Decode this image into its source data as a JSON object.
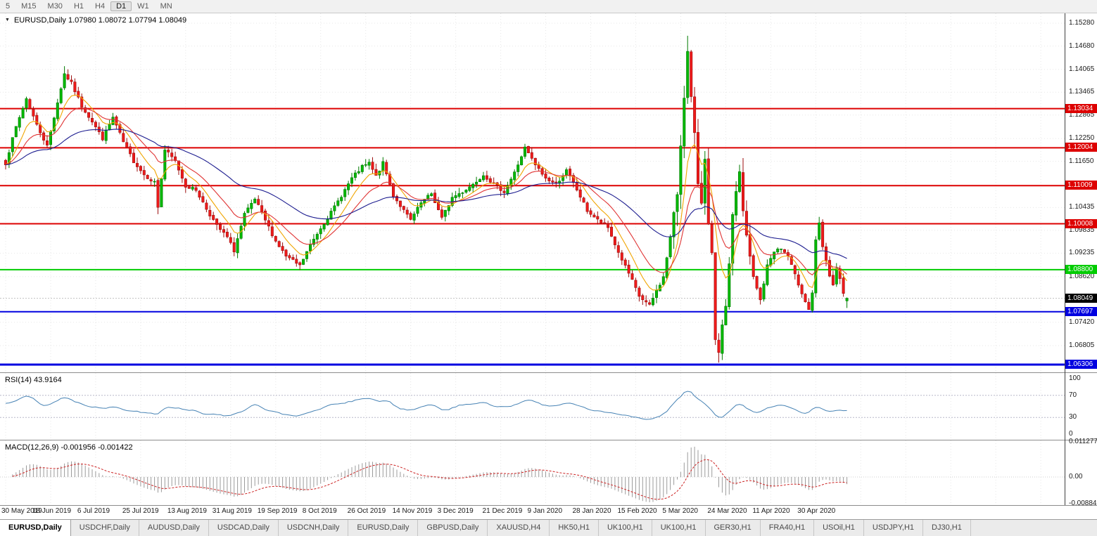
{
  "toolbar": {
    "timeframes": [
      {
        "label": "5",
        "active": false
      },
      {
        "label": "M15",
        "active": false
      },
      {
        "label": "M30",
        "active": false
      },
      {
        "label": "H1",
        "active": false
      },
      {
        "label": "H4",
        "active": false
      },
      {
        "label": "D1",
        "active": true
      },
      {
        "label": "W1",
        "active": false
      },
      {
        "label": "MN",
        "active": false
      }
    ]
  },
  "icons": {
    "chart_menu": "▼"
  },
  "chart": {
    "title_text": "EURUSD,Daily 1.07980 1.08072 1.07794 1.08049"
  },
  "chart_data": {
    "type": "candlestick",
    "symbol": "EURUSD",
    "period": "Daily",
    "ohlc": {
      "open": 1.0798,
      "high": 1.08072,
      "low": 1.07794,
      "close": 1.08049
    },
    "bar_count": 244,
    "bars_per_xlabel": 13,
    "x_labels": [
      "30 May 2019",
      "18 Jun 2019",
      "6 Jul 2019",
      "25 Jul 2019",
      "13 Aug 2019",
      "31 Aug 2019",
      "19 Sep 2019",
      "8 Oct 2019",
      "26 Oct 2019",
      "14 Nov 2019",
      "3 Dec 2019",
      "21 Dec 2019",
      "9 Jan 2020",
      "28 Jan 2020",
      "15 Feb 2020",
      "5 Mar 2020",
      "24 Mar 2020",
      "11 Apr 2020",
      "30 Apr 2020"
    ],
    "y_axis_ticks": [
      {
        "label": "1.15280",
        "value": 1.1528
      },
      {
        "label": "1.14680",
        "value": 1.1468
      },
      {
        "label": "1.14065",
        "value": 1.14065
      },
      {
        "label": "1.13465",
        "value": 1.13465
      },
      {
        "label": "1.12865",
        "value": 1.12865
      },
      {
        "label": "1.12250",
        "value": 1.1225
      },
      {
        "label": "1.11650",
        "value": 1.1165
      },
      {
        "label": "1.10435",
        "value": 1.10435
      },
      {
        "label": "1.09835",
        "value": 1.09835
      },
      {
        "label": "1.09235",
        "value": 1.09235
      },
      {
        "label": "1.08620",
        "value": 1.0862
      },
      {
        "label": "1.07420",
        "value": 1.0742
      },
      {
        "label": "1.06805",
        "value": 1.06805
      }
    ],
    "h_lines": [
      {
        "value": 1.13034,
        "label": "1.13034",
        "color": "#dd0000",
        "width": 2
      },
      {
        "value": 1.12004,
        "label": "1.12004",
        "color": "#dd0000",
        "width": 2
      },
      {
        "value": 1.11009,
        "label": "1.11009",
        "color": "#dd0000",
        "width": 2
      },
      {
        "value": 1.10008,
        "label": "1.10008",
        "color": "#dd0000",
        "width": 2
      },
      {
        "value": 1.088,
        "label": "1.08800",
        "color": "#00cc00",
        "width": 2
      },
      {
        "value": 1.07697,
        "label": "1.07697",
        "color": "#0000e0",
        "width": 2
      },
      {
        "value": 1.06306,
        "label": "1.06306",
        "color": "#0000e0",
        "width": 3
      }
    ],
    "current_price": {
      "label": "1.08049",
      "value": 1.08049
    },
    "price_anchors": [
      [
        0,
        1.116
      ],
      [
        3,
        1.1255
      ],
      [
        6,
        1.133
      ],
      [
        9,
        1.126
      ],
      [
        12,
        1.1205
      ],
      [
        15,
        1.132
      ],
      [
        17,
        1.1395
      ],
      [
        19,
        1.137
      ],
      [
        22,
        1.131
      ],
      [
        25,
        1.127
      ],
      [
        28,
        1.1225
      ],
      [
        31,
        1.128
      ],
      [
        34,
        1.1215
      ],
      [
        37,
        1.1165
      ],
      [
        40,
        1.113
      ],
      [
        43,
        1.111
      ],
      [
        44,
        1.1045
      ],
      [
        46,
        1.1195
      ],
      [
        49,
        1.1165
      ],
      [
        52,
        1.11
      ],
      [
        55,
        1.109
      ],
      [
        58,
        1.104
      ],
      [
        61,
        1.0995
      ],
      [
        64,
        1.0965
      ],
      [
        66,
        1.093
      ],
      [
        69,
        1.1025
      ],
      [
        72,
        1.1065
      ],
      [
        75,
        1.101
      ],
      [
        78,
        1.0955
      ],
      [
        81,
        1.0915
      ],
      [
        85,
        1.089
      ],
      [
        88,
        1.0945
      ],
      [
        91,
        1.099
      ],
      [
        94,
        1.103
      ],
      [
        97,
        1.1075
      ],
      [
        100,
        1.112
      ],
      [
        103,
        1.115
      ],
      [
        105,
        1.116
      ],
      [
        107,
        1.1125
      ],
      [
        109,
        1.116
      ],
      [
        112,
        1.1075
      ],
      [
        115,
        1.1035
      ],
      [
        117,
        1.101
      ],
      [
        120,
        1.1055
      ],
      [
        123,
        1.108
      ],
      [
        126,
        1.1015
      ],
      [
        129,
        1.107
      ],
      [
        132,
        1.1085
      ],
      [
        135,
        1.1105
      ],
      [
        138,
        1.113
      ],
      [
        141,
        1.1105
      ],
      [
        144,
        1.1085
      ],
      [
        147,
        1.1135
      ],
      [
        150,
        1.12
      ],
      [
        153,
        1.1155
      ],
      [
        156,
        1.112
      ],
      [
        159,
        1.1105
      ],
      [
        162,
        1.114
      ],
      [
        165,
        1.109
      ],
      [
        168,
        1.1035
      ],
      [
        171,
        1.101
      ],
      [
        174,
        1.099
      ],
      [
        177,
        1.0925
      ],
      [
        180,
        1.087
      ],
      [
        183,
        1.081
      ],
      [
        186,
        1.0785
      ],
      [
        188,
        1.0825
      ],
      [
        190,
        1.086
      ],
      [
        192,
        1.0965
      ],
      [
        194,
        1.108
      ],
      [
        196,
        1.134
      ],
      [
        197,
        1.145
      ],
      [
        198,
        1.133
      ],
      [
        199,
        1.123
      ],
      [
        200,
        1.111
      ],
      [
        201,
        1.106
      ],
      [
        202,
        1.118
      ],
      [
        203,
        1.0995
      ],
      [
        204,
        1.0915
      ],
      [
        205,
        1.069
      ],
      [
        206,
        1.0655
      ],
      [
        207,
        1.0725
      ],
      [
        208,
        1.079
      ],
      [
        209,
        1.0885
      ],
      [
        210,
        1.103
      ],
      [
        211,
        1.1085
      ],
      [
        212,
        1.114
      ],
      [
        213,
        1.103
      ],
      [
        214,
        1.0965
      ],
      [
        216,
        1.086
      ],
      [
        218,
        1.08
      ],
      [
        220,
        1.089
      ],
      [
        222,
        1.093
      ],
      [
        224,
        1.0935
      ],
      [
        226,
        1.0915
      ],
      [
        228,
        1.0865
      ],
      [
        230,
        1.082
      ],
      [
        232,
        1.0775
      ],
      [
        233,
        1.082
      ],
      [
        234,
        1.0955
      ],
      [
        235,
        1.1
      ],
      [
        236,
        1.094
      ],
      [
        237,
        1.09
      ],
      [
        238,
        1.0865
      ],
      [
        239,
        1.084
      ],
      [
        240,
        1.088
      ],
      [
        241,
        1.0855
      ],
      [
        242,
        1.0815
      ],
      [
        243,
        1.0805
      ]
    ],
    "special_wicks": [
      {
        "i": 17,
        "high": 1.1415
      },
      {
        "i": 44,
        "low": 1.1026
      },
      {
        "i": 85,
        "low": 1.0879
      },
      {
        "i": 197,
        "high": 1.1495
      },
      {
        "i": 206,
        "low": 1.0636
      },
      {
        "i": 235,
        "high": 1.1019
      }
    ],
    "moving_averages": [
      {
        "name": "fast-ma",
        "period": 8,
        "color": "#f0a500"
      },
      {
        "name": "mid-ma",
        "period": 17,
        "color": "#e03535"
      },
      {
        "name": "slow-ma",
        "period": 48,
        "color": "#1c1c8f"
      }
    ],
    "rsi": {
      "label": "RSI(14) 43.9164",
      "period": 14,
      "current": 43.9164,
      "axis": [
        {
          "label": "100",
          "value": 100
        },
        {
          "label": "70",
          "value": 70
        },
        {
          "label": "30",
          "value": 30
        },
        {
          "label": "0",
          "value": 0
        }
      ],
      "anchors": [
        [
          0,
          55
        ],
        [
          4,
          63
        ],
        [
          7,
          69
        ],
        [
          11,
          50
        ],
        [
          14,
          58
        ],
        [
          17,
          67
        ],
        [
          20,
          60
        ],
        [
          24,
          50
        ],
        [
          28,
          44
        ],
        [
          31,
          52
        ],
        [
          35,
          42
        ],
        [
          40,
          38
        ],
        [
          44,
          33
        ],
        [
          46,
          52
        ],
        [
          50,
          46
        ],
        [
          55,
          42
        ],
        [
          60,
          36
        ],
        [
          65,
          31
        ],
        [
          69,
          46
        ],
        [
          72,
          53
        ],
        [
          76,
          43
        ],
        [
          81,
          36
        ],
        [
          85,
          33
        ],
        [
          89,
          42
        ],
        [
          93,
          50
        ],
        [
          97,
          56
        ],
        [
          101,
          62
        ],
        [
          105,
          65
        ],
        [
          108,
          58
        ],
        [
          110,
          62
        ],
        [
          113,
          48
        ],
        [
          117,
          41
        ],
        [
          121,
          50
        ],
        [
          124,
          53
        ],
        [
          127,
          43
        ],
        [
          130,
          50
        ],
        [
          134,
          54
        ],
        [
          138,
          59
        ],
        [
          142,
          50
        ],
        [
          145,
          46
        ],
        [
          148,
          55
        ],
        [
          151,
          65
        ],
        [
          154,
          55
        ],
        [
          158,
          49
        ],
        [
          161,
          53
        ],
        [
          164,
          56
        ],
        [
          168,
          44
        ],
        [
          172,
          40
        ],
        [
          176,
          37
        ],
        [
          180,
          31
        ],
        [
          184,
          27
        ],
        [
          187,
          26
        ],
        [
          189,
          33
        ],
        [
          191,
          40
        ],
        [
          193,
          55
        ],
        [
          195,
          68
        ],
        [
          197,
          82
        ],
        [
          198,
          76
        ],
        [
          200,
          60
        ],
        [
          202,
          55
        ],
        [
          204,
          42
        ],
        [
          206,
          28
        ],
        [
          208,
          33
        ],
        [
          210,
          45
        ],
        [
          212,
          57
        ],
        [
          214,
          48
        ],
        [
          217,
          38
        ],
        [
          220,
          46
        ],
        [
          223,
          54
        ],
        [
          226,
          48
        ],
        [
          229,
          42
        ],
        [
          232,
          36
        ],
        [
          234,
          52
        ],
        [
          236,
          48
        ],
        [
          238,
          42
        ],
        [
          240,
          46
        ],
        [
          242,
          42
        ],
        [
          243,
          44
        ]
      ]
    },
    "macd": {
      "label": "MACD(12,26,9) -0.001956 -0.001422",
      "fast": 12,
      "slow": 26,
      "signal": 9,
      "current_macd": -0.001956,
      "current_signal": -0.001422,
      "axis": [
        {
          "label": "0.011277",
          "value": 0.011277
        },
        {
          "label": "0.00",
          "value": 0
        },
        {
          "label": "-0.00884",
          "value": -0.00884
        }
      ]
    }
  },
  "colors": {
    "up": "#00b800",
    "up_border": "#007a00",
    "down": "#ef1a1a",
    "down_border": "#9c0f0f",
    "rsi_line": "#4682b4",
    "rsi_level": "#b8b8c8",
    "macd_hist": "#9b9b9b",
    "macd_signal": "#cc2222",
    "grid": "#e7e7e7",
    "separator": "#8c8c8c",
    "axis_line": "#404040",
    "current_price_bg": "#000000",
    "bid_line": "#c0c0c0"
  },
  "tabs": [
    {
      "label": "EURUSD,Daily",
      "active": true
    },
    {
      "label": "USDCHF,Daily",
      "active": false
    },
    {
      "label": "AUDUSD,Daily",
      "active": false
    },
    {
      "label": "USDCAD,Daily",
      "active": false
    },
    {
      "label": "USDCNH,Daily",
      "active": false
    },
    {
      "label": "EURUSD,Daily",
      "active": false
    },
    {
      "label": "GBPUSD,Daily",
      "active": false
    },
    {
      "label": "XAUUSD,H4",
      "active": false
    },
    {
      "label": "HK50,H1",
      "active": false
    },
    {
      "label": "UK100,H1",
      "active": false
    },
    {
      "label": "UK100,H1",
      "active": false
    },
    {
      "label": "GER30,H1",
      "active": false
    },
    {
      "label": "FRA40,H1",
      "active": false
    },
    {
      "label": "USOil,H1",
      "active": false
    },
    {
      "label": "USDJPY,H1",
      "active": false
    },
    {
      "label": "DJ30,H1",
      "active": false
    }
  ]
}
